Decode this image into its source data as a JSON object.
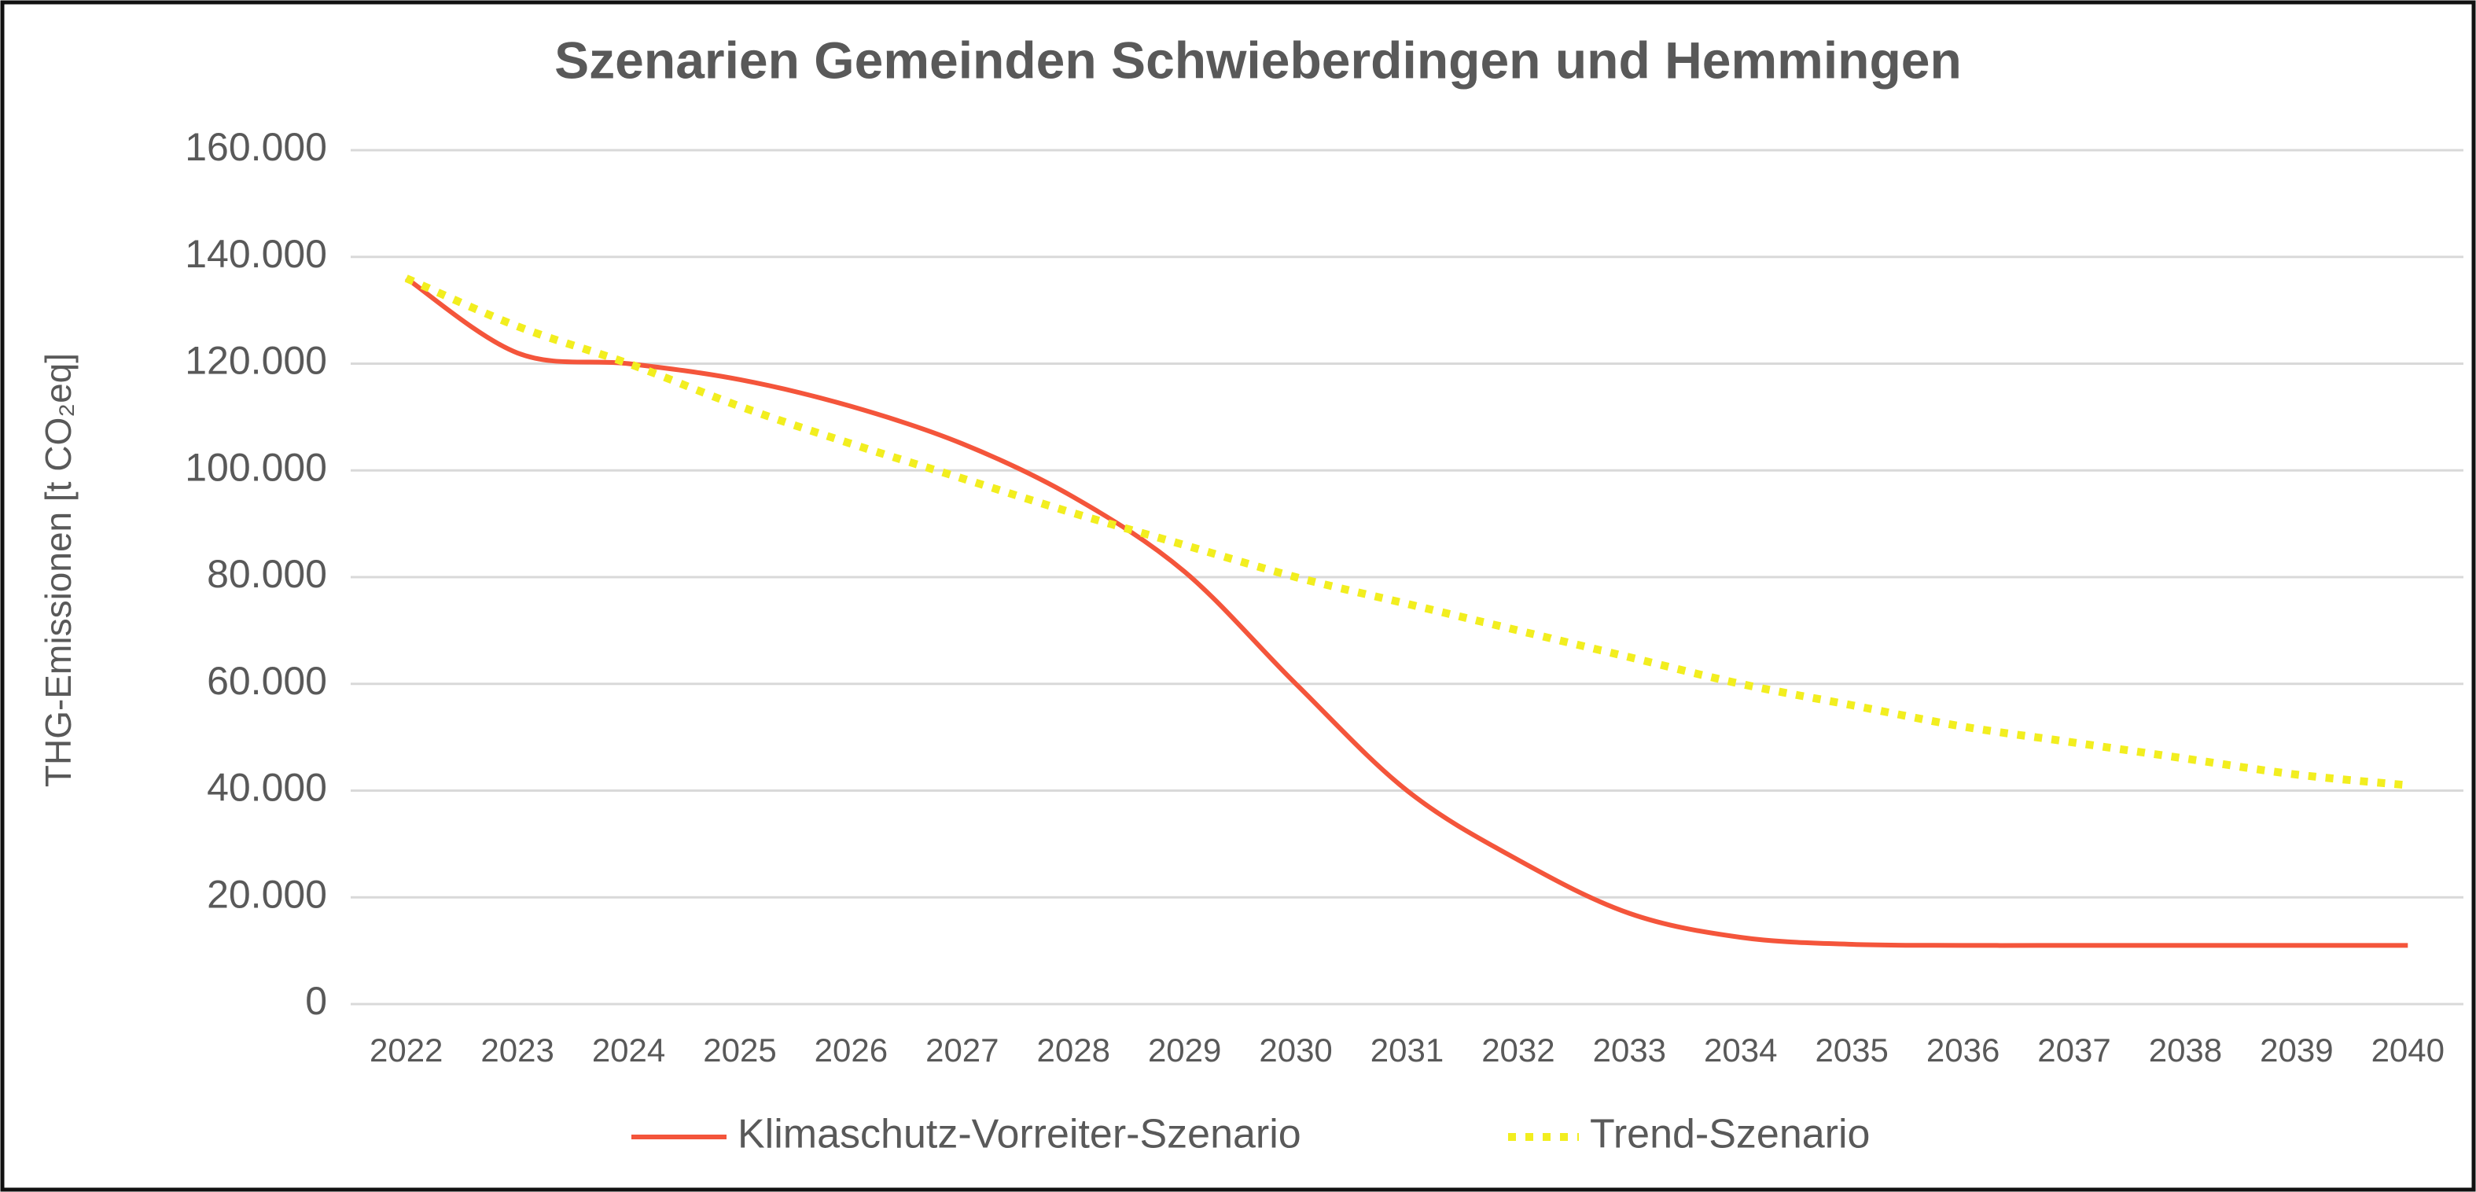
{
  "chart_data": {
    "type": "line",
    "title": "Szenarien Gemeinden Schwieberdingen und Hemmingen",
    "y_label": "THG-Emissionen [t CO₂eq]",
    "categories": [
      "2022",
      "2023",
      "2024",
      "2025",
      "2026",
      "2027",
      "2028",
      "2029",
      "2030",
      "2031",
      "2032",
      "2033",
      "2034",
      "2035",
      "2036",
      "2037",
      "2038",
      "2039",
      "2040"
    ],
    "series": [
      {
        "name": "Klimaschutz-Vorreiter-Szenario",
        "color": "#f4553b",
        "style": "solid",
        "values": [
          136000,
          122000,
          120000,
          117000,
          112000,
          105000,
          95000,
          81000,
          60000,
          40000,
          27000,
          17000,
          12500,
          11200,
          11000,
          11000,
          11000,
          11000,
          11000
        ]
      },
      {
        "name": "Trend-Szenario",
        "color": "#f2ee1f",
        "style": "dotted",
        "values": [
          136000,
          127000,
          120000,
          112000,
          105000,
          98500,
          92000,
          86000,
          80000,
          75000,
          70000,
          65000,
          60000,
          56000,
          52000,
          49000,
          46000,
          43000,
          41000
        ]
      }
    ],
    "ylim": [
      0,
      160000
    ],
    "yticks": [
      0,
      {
        "value": 20000,
        "label": "20.000"
      },
      {
        "value": 40000,
        "label": "40.000"
      },
      {
        "value": 60000,
        "label": "60.000"
      },
      {
        "value": 80000,
        "label": "80.000"
      },
      {
        "value": 100000,
        "label": "100.000"
      },
      {
        "value": 120000,
        "label": "120.000"
      },
      {
        "value": 140000,
        "label": "140.000"
      },
      {
        "value": 160000,
        "label": "160.000"
      }
    ],
    "grid": true,
    "legend": "bottom"
  }
}
